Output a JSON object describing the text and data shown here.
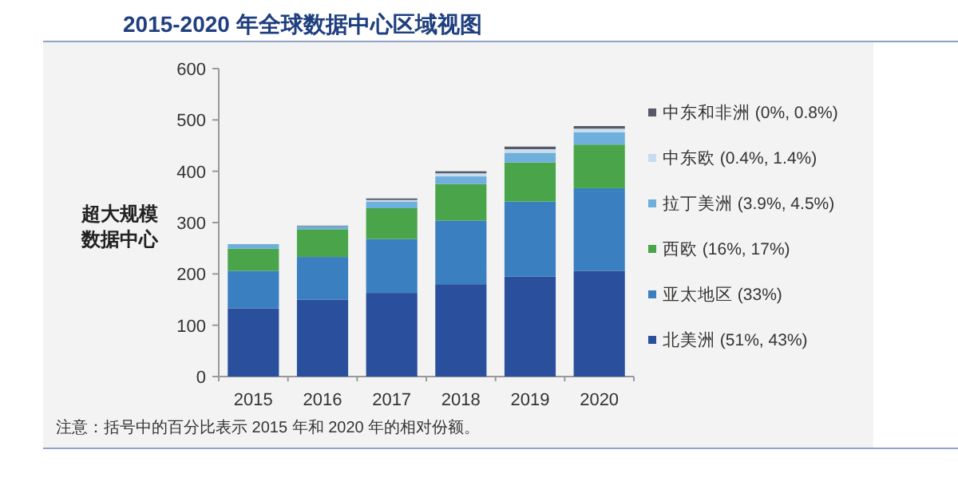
{
  "chart_data": {
    "type": "bar",
    "stacked": true,
    "title": "2015-2020 年全球数据中心区域视图",
    "ylabel": "超大规模数据中心",
    "categories": [
      "2015",
      "2016",
      "2017",
      "2018",
      "2019",
      "2020"
    ],
    "series": [
      {
        "name": "北美洲 (51%, 43%)",
        "color": "#2a4f9c",
        "values": [
          133,
          150,
          163,
          180,
          195,
          206
        ]
      },
      {
        "name": "亚太地区 (33%)",
        "color": "#3a7fbf",
        "values": [
          73,
          83,
          105,
          124,
          146,
          161
        ]
      },
      {
        "name": "西欧 (16%, 17%)",
        "color": "#4aa54a",
        "values": [
          43,
          54,
          60,
          71,
          76,
          85
        ]
      },
      {
        "name": "拉丁美洲 (3.9%, 4.5%)",
        "color": "#6fafdc",
        "values": [
          9,
          6,
          13,
          15,
          19,
          24
        ]
      },
      {
        "name": "中东欧 (0.4%, 1.4%)",
        "color": "#c9dcef",
        "values": [
          null,
          null,
          3,
          6,
          7,
          7
        ]
      },
      {
        "name": "中东和非洲 (0%, 0.8%)",
        "color": "#555a66",
        "values": [
          0,
          1,
          3,
          4,
          5,
          5
        ]
      }
    ],
    "ylim": [
      0,
      600
    ],
    "yticks": [
      0,
      100,
      200,
      300,
      400,
      500,
      600
    ],
    "grid": false,
    "legend": "right",
    "annotations": [
      "注意：括号中的百分比表示 2015 年和 2020 年的相对份额。"
    ]
  }
}
